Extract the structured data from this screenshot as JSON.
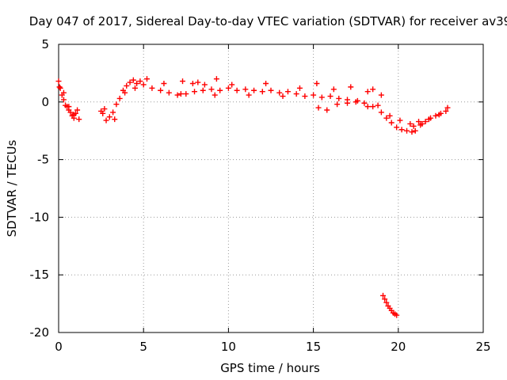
{
  "chart_data": {
    "type": "scatter",
    "title": "Day 047 of 2017, Sidereal Day-to-day VTEC variation (SDTVAR) for receiver av39",
    "xlabel": "GPS time / hours",
    "ylabel": "SDTVAR / TECUs",
    "xlim": [
      0,
      25
    ],
    "ylim": [
      -20,
      5
    ],
    "xticks": [
      0,
      5,
      10,
      15,
      20,
      25
    ],
    "xtick_labels": [
      "0",
      "5",
      "10",
      "15",
      "20",
      "25"
    ],
    "yticks": [
      5,
      0,
      -5,
      -10,
      -15,
      -20
    ],
    "ytick_labels": [
      "5",
      "0",
      "-5",
      "-10",
      "-15",
      "-20"
    ],
    "grid": true,
    "marker": "+",
    "color": "#ff0000",
    "series": [
      {
        "name": "SDTVAR",
        "x": [
          0.0,
          0.1,
          0.2,
          0.3,
          0.4,
          0.5,
          0.6,
          0.7,
          0.8,
          0.9,
          1.0,
          1.1,
          1.2,
          2.5,
          2.6,
          2.8,
          3.0,
          3.2,
          3.4,
          3.6,
          3.8,
          4.0,
          4.2,
          4.4,
          4.6,
          4.8,
          5.0,
          5.5,
          6.0,
          6.5,
          7.0,
          7.5,
          8.0,
          8.5,
          9.0,
          9.5,
          10.0,
          10.5,
          11.0,
          11.5,
          12.0,
          12.5,
          13.0,
          13.5,
          14.0,
          14.5,
          15.0,
          15.5,
          16.0,
          16.5,
          17.0,
          17.5,
          18.0,
          18.5,
          19.0,
          19.3,
          19.6,
          19.9,
          20.2,
          20.5,
          20.8,
          21.0,
          21.3,
          21.6,
          21.9,
          22.2,
          22.5,
          22.8,
          19.1,
          19.2,
          19.3,
          19.4,
          19.5,
          19.6,
          19.7,
          19.8,
          19.9,
          0.05,
          0.3,
          0.6,
          0.9,
          2.7,
          3.3,
          3.9,
          4.5,
          5.2,
          6.2,
          7.2,
          8.2,
          9.2,
          10.2,
          11.2,
          12.2,
          13.2,
          14.2,
          15.2,
          16.2,
          17.2,
          18.2,
          15.3,
          15.8,
          16.4,
          17.0,
          17.6,
          18.2,
          18.8,
          19.5,
          20.1,
          20.7,
          21.2,
          21.8,
          22.4,
          7.3,
          7.9,
          8.6,
          9.3,
          18.5,
          19.0,
          22.9,
          20.9,
          21.4
        ],
        "y": [
          1.8,
          1.2,
          0.6,
          0.2,
          -0.3,
          -0.4,
          -0.7,
          -0.9,
          -1.2,
          -1.4,
          -1.0,
          -0.7,
          -1.5,
          -0.8,
          -1.0,
          -1.6,
          -1.3,
          -0.9,
          -0.2,
          0.3,
          1.0,
          1.4,
          1.7,
          1.9,
          1.6,
          1.8,
          1.5,
          1.2,
          1.0,
          0.8,
          0.6,
          0.7,
          0.9,
          1.0,
          1.1,
          1.0,
          1.2,
          1.0,
          1.1,
          1.0,
          0.9,
          1.0,
          0.8,
          0.9,
          0.7,
          0.5,
          0.6,
          0.4,
          0.5,
          0.3,
          0.2,
          0.0,
          -0.1,
          -0.4,
          -0.9,
          -1.4,
          -1.8,
          -2.2,
          -2.4,
          -2.5,
          -2.6,
          -2.5,
          -2.0,
          -1.7,
          -1.4,
          -1.2,
          -1.0,
          -0.8,
          -16.8,
          -17.1,
          -17.4,
          -17.7,
          -17.9,
          -18.1,
          -18.3,
          -18.4,
          -18.5,
          1.3,
          0.8,
          -0.4,
          -1.1,
          -0.6,
          -1.5,
          0.8,
          1.2,
          2.0,
          1.6,
          0.7,
          1.7,
          0.6,
          1.5,
          0.6,
          1.6,
          0.5,
          1.2,
          1.6,
          1.1,
          1.3,
          0.9,
          -0.5,
          -0.7,
          -0.2,
          -0.1,
          0.1,
          -0.4,
          -0.3,
          -1.2,
          -1.6,
          -1.9,
          -1.7,
          -1.5,
          -1.1,
          1.8,
          1.6,
          1.5,
          2.0,
          1.1,
          0.6,
          -0.5,
          -2.1,
          -1.9
        ]
      }
    ]
  }
}
